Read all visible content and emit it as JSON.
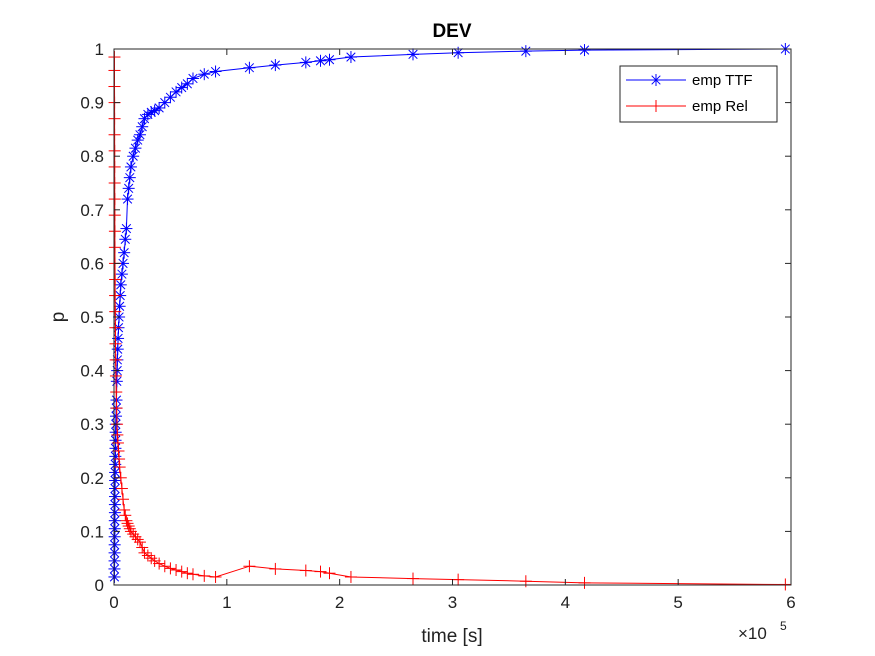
{
  "chart_data": {
    "type": "line",
    "title": "DEV",
    "xlabel": "time [s]",
    "ylabel": "p",
    "x_exponent_base": "×10",
    "x_exponent_power": "5",
    "xlim": [
      0,
      6
    ],
    "ylim": [
      0,
      1
    ],
    "xticks": [
      0,
      1,
      2,
      3,
      4,
      5,
      6
    ],
    "xtick_labels": [
      "0",
      "1",
      "2",
      "3",
      "4",
      "5",
      "6"
    ],
    "yticks": [
      0,
      0.1,
      0.2,
      0.3,
      0.4,
      0.5,
      0.6,
      0.7,
      0.8,
      0.9,
      1
    ],
    "ytick_labels": [
      "0",
      "0.1",
      "0.2",
      "0.3",
      "0.4",
      "0.5",
      "0.6",
      "0.7",
      "0.8",
      "0.9",
      "1"
    ],
    "grid": false,
    "legend_position": "top-right",
    "series": [
      {
        "name": "emp TTF",
        "color": "#0000ff",
        "marker": "asterisk",
        "x": [
          0.004,
          0.004,
          0.005,
          0.005,
          0.006,
          0.006,
          0.007,
          0.007,
          0.008,
          0.008,
          0.009,
          0.009,
          0.01,
          0.01,
          0.011,
          0.012,
          0.013,
          0.014,
          0.015,
          0.016,
          0.018,
          0.02,
          0.022,
          0.025,
          0.028,
          0.03,
          0.033,
          0.036,
          0.04,
          0.045,
          0.05,
          0.055,
          0.06,
          0.07,
          0.08,
          0.09,
          0.1,
          0.11,
          0.12,
          0.13,
          0.14,
          0.15,
          0.17,
          0.19,
          0.21,
          0.23,
          0.25,
          0.27,
          0.3,
          0.33,
          0.36,
          0.4,
          0.45,
          0.5,
          0.55,
          0.6,
          0.65,
          0.7,
          0.8,
          0.9,
          1.2,
          1.43,
          1.7,
          1.83,
          1.91,
          2.1,
          2.65,
          3.05,
          3.65,
          4.17,
          5.95
        ],
        "y": [
          0.015,
          0.03,
          0.045,
          0.06,
          0.075,
          0.09,
          0.105,
          0.12,
          0.135,
          0.15,
          0.165,
          0.18,
          0.195,
          0.21,
          0.225,
          0.24,
          0.255,
          0.27,
          0.285,
          0.3,
          0.315,
          0.33,
          0.345,
          0.38,
          0.4,
          0.42,
          0.44,
          0.46,
          0.48,
          0.5,
          0.52,
          0.54,
          0.56,
          0.58,
          0.6,
          0.62,
          0.645,
          0.665,
          0.72,
          0.74,
          0.76,
          0.78,
          0.8,
          0.815,
          0.83,
          0.84,
          0.855,
          0.87,
          0.878,
          0.882,
          0.885,
          0.89,
          0.9,
          0.91,
          0.92,
          0.928,
          0.935,
          0.945,
          0.953,
          0.958,
          0.965,
          0.97,
          0.975,
          0.978,
          0.98,
          0.985,
          0.99,
          0.993,
          0.996,
          0.998,
          1.0
        ]
      },
      {
        "name": "emp Rel",
        "color": "#ff0000",
        "marker": "plus",
        "x": [
          0.004,
          0.004,
          0.004,
          0.005,
          0.005,
          0.005,
          0.006,
          0.006,
          0.006,
          0.007,
          0.007,
          0.008,
          0.008,
          0.009,
          0.01,
          0.01,
          0.011,
          0.012,
          0.013,
          0.015,
          0.017,
          0.02,
          0.023,
          0.027,
          0.03,
          0.035,
          0.04,
          0.045,
          0.05,
          0.06,
          0.07,
          0.08,
          0.09,
          0.1,
          0.11,
          0.12,
          0.13,
          0.14,
          0.15,
          0.17,
          0.19,
          0.21,
          0.23,
          0.25,
          0.27,
          0.3,
          0.33,
          0.36,
          0.4,
          0.45,
          0.5,
          0.55,
          0.6,
          0.65,
          0.7,
          0.8,
          0.9,
          1.2,
          1.43,
          1.7,
          1.83,
          1.91,
          2.1,
          2.65,
          3.05,
          3.65,
          4.17,
          5.95
        ],
        "y": [
          0.985,
          0.96,
          0.93,
          0.9,
          0.87,
          0.84,
          0.81,
          0.78,
          0.75,
          0.72,
          0.69,
          0.66,
          0.63,
          0.6,
          0.57,
          0.54,
          0.51,
          0.48,
          0.45,
          0.42,
          0.39,
          0.36,
          0.33,
          0.3,
          0.28,
          0.265,
          0.25,
          0.235,
          0.22,
          0.2,
          0.18,
          0.16,
          0.14,
          0.13,
          0.12,
          0.115,
          0.11,
          0.105,
          0.1,
          0.095,
          0.09,
          0.085,
          0.08,
          0.07,
          0.06,
          0.055,
          0.05,
          0.045,
          0.04,
          0.035,
          0.031,
          0.028,
          0.025,
          0.022,
          0.02,
          0.017,
          0.015,
          0.035,
          0.03,
          0.027,
          0.025,
          0.022,
          0.015,
          0.012,
          0.01,
          0.007,
          0.004,
          0.001
        ]
      }
    ]
  }
}
